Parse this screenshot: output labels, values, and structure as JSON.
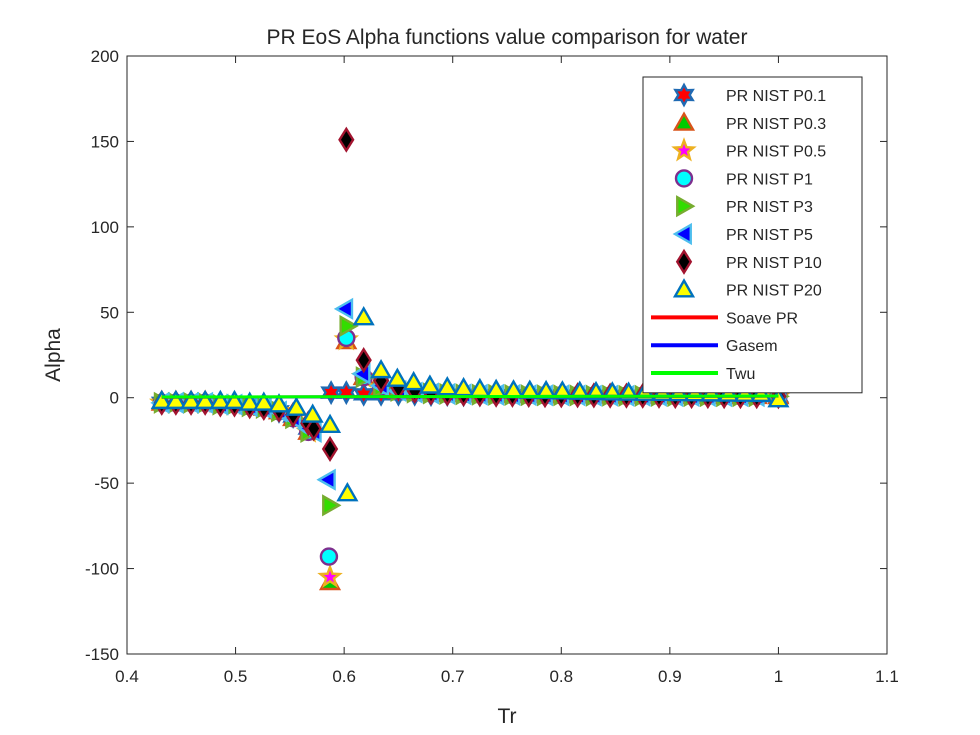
{
  "chart_data": {
    "type": "scatter",
    "title": "PR EoS Alpha functions value comparison for water",
    "xlabel": "Tr",
    "ylabel": "Alpha",
    "xlim": [
      0.4,
      1.1
    ],
    "ylim": [
      -150,
      200
    ],
    "xticks": [
      "0.4",
      "0.5",
      "0.6",
      "0.7",
      "0.8",
      "0.9",
      "1",
      "1.1"
    ],
    "yticks": [
      "-150",
      "-100",
      "-50",
      "0",
      "50",
      "100",
      "150",
      "200"
    ],
    "grid": false,
    "legend_position": "top-right",
    "x": [
      0.432,
      0.445,
      0.459,
      0.472,
      0.486,
      0.499,
      0.513,
      0.526,
      0.54,
      0.553,
      0.567,
      0.58,
      0.594,
      0.607,
      0.621,
      0.634,
      0.648,
      0.661,
      0.675,
      0.688,
      0.702,
      0.715,
      0.729,
      0.742,
      0.756,
      0.769,
      0.783,
      0.796,
      0.81,
      0.823,
      0.837,
      0.85,
      0.864,
      0.877,
      0.891,
      0.904,
      0.918,
      0.931,
      0.945,
      0.958,
      0.972,
      0.985,
      1.0
    ],
    "series": [
      {
        "name": "PR NIST P0.1",
        "marker": "hexagram",
        "fill": "#ff0000",
        "edge": "#1f6ab3",
        "x": [
          0.432,
          0.445,
          0.459,
          0.472,
          0.486,
          0.499,
          0.513,
          0.526,
          0.54,
          0.553,
          0.567,
          0.588,
          0.602,
          0.618,
          0.634,
          0.65,
          0.665,
          0.68,
          0.695,
          0.71,
          0.725,
          0.74,
          0.755,
          0.77,
          0.785,
          0.8,
          0.815,
          0.83,
          0.845,
          0.86,
          0.875,
          0.89,
          0.905,
          0.92,
          0.935,
          0.95,
          0.965,
          0.98,
          1.0
        ],
        "y": [
          -3,
          -3,
          -3,
          -3,
          -4,
          -4,
          -5,
          -6,
          -8,
          -11,
          -18,
          3,
          3,
          2,
          2,
          2,
          2,
          1.8,
          1.8,
          1.7,
          1.6,
          1.5,
          1.5,
          1.4,
          1.3,
          1.3,
          1.2,
          1.2,
          1.1,
          1.1,
          1.1,
          1.0,
          1.0,
          1.0,
          0.9,
          0.9,
          0.9,
          0.9,
          0.8
        ]
      },
      {
        "name": "PR NIST P0.3",
        "marker": "triangle-up",
        "fill": "#00cc00",
        "edge": "#d95319",
        "x": [
          0.432,
          0.445,
          0.459,
          0.472,
          0.486,
          0.499,
          0.513,
          0.526,
          0.54,
          0.553,
          0.567,
          0.587,
          0.602,
          0.618,
          0.634,
          0.65,
          0.665,
          0.68,
          0.695,
          0.71,
          0.725,
          0.74,
          0.755,
          0.77,
          0.785,
          0.8,
          0.815,
          0.83,
          0.845,
          0.86,
          0.875,
          0.89,
          0.905,
          0.92,
          0.935,
          0.95,
          0.965,
          0.98,
          1.0
        ],
        "y": [
          -3,
          -3,
          -3,
          -3,
          -4,
          -4,
          -5,
          -6,
          -8,
          -12,
          -20,
          -108,
          33,
          12,
          6,
          4,
          3,
          2.5,
          2.2,
          2,
          1.8,
          1.7,
          1.6,
          1.5,
          1.4,
          1.4,
          1.3,
          1.2,
          1.2,
          1.1,
          1.1,
          1.1,
          1.0,
          1.0,
          1.0,
          0.9,
          0.9,
          0.9,
          0.8
        ]
      },
      {
        "name": "PR NIST P0.5",
        "marker": "pentagram",
        "fill": "#ff00ff",
        "edge": "#edb120",
        "x": [
          0.432,
          0.445,
          0.459,
          0.472,
          0.486,
          0.499,
          0.513,
          0.526,
          0.54,
          0.553,
          0.567,
          0.587,
          0.602,
          0.618,
          0.634,
          0.65,
          0.665,
          0.68,
          0.695,
          0.71,
          0.725,
          0.74,
          0.755,
          0.77,
          0.785,
          0.8,
          0.815,
          0.83,
          0.845,
          0.86,
          0.875,
          0.89,
          0.905,
          0.92,
          0.935,
          0.95,
          0.965,
          0.98,
          1.0
        ],
        "y": [
          -3,
          -3,
          -3,
          -3,
          -4,
          -4,
          -5,
          -6,
          -8,
          -12,
          -20,
          -105,
          34,
          12,
          6,
          4,
          3,
          2.5,
          2.2,
          2,
          1.8,
          1.7,
          1.6,
          1.5,
          1.4,
          1.4,
          1.3,
          1.2,
          1.2,
          1.1,
          1.1,
          1.1,
          1.0,
          1.0,
          1.0,
          0.9,
          0.9,
          0.9,
          0.8
        ]
      },
      {
        "name": "PR NIST P1",
        "marker": "circle",
        "fill": "#00ffff",
        "edge": "#7e2f8e",
        "x": [
          0.432,
          0.445,
          0.459,
          0.472,
          0.486,
          0.499,
          0.513,
          0.526,
          0.54,
          0.553,
          0.567,
          0.586,
          0.602,
          0.618,
          0.634,
          0.65,
          0.665,
          0.68,
          0.695,
          0.71,
          0.725,
          0.74,
          0.755,
          0.77,
          0.785,
          0.8,
          0.815,
          0.83,
          0.845,
          0.86,
          0.875,
          0.89,
          0.905,
          0.92,
          0.935,
          0.95,
          0.965,
          0.98,
          1.0
        ],
        "y": [
          -3,
          -3,
          -3,
          -3,
          -4,
          -4,
          -5,
          -6,
          -8,
          -12,
          -20,
          -93,
          35,
          12,
          6,
          4,
          3,
          2.5,
          2.2,
          2,
          1.8,
          1.7,
          1.6,
          1.5,
          1.4,
          1.4,
          1.3,
          1.2,
          1.2,
          1.1,
          1.1,
          1.1,
          1.0,
          1.0,
          1.0,
          0.9,
          0.9,
          0.9,
          0.8
        ]
      },
      {
        "name": "PR NIST P3",
        "marker": "triangle-right",
        "fill": "#33dd00",
        "edge": "#77ac30",
        "x": [
          0.432,
          0.445,
          0.459,
          0.472,
          0.486,
          0.499,
          0.513,
          0.526,
          0.54,
          0.553,
          0.567,
          0.587,
          0.603,
          0.618,
          0.634,
          0.65,
          0.665,
          0.68,
          0.695,
          0.71,
          0.725,
          0.74,
          0.755,
          0.77,
          0.785,
          0.8,
          0.815,
          0.83,
          0.845,
          0.86,
          0.875,
          0.89,
          0.905,
          0.92,
          0.935,
          0.95,
          0.965,
          0.98,
          1.0
        ],
        "y": [
          -3,
          -3,
          -3,
          -3,
          -4,
          -4,
          -5,
          -6,
          -8,
          -12,
          -20,
          -63,
          42,
          12,
          6,
          4,
          3,
          2.5,
          2.2,
          2,
          1.8,
          1.7,
          1.6,
          1.5,
          1.4,
          1.4,
          1.3,
          1.2,
          1.2,
          1.1,
          1.1,
          1.1,
          1.0,
          1.0,
          1.0,
          0.9,
          0.9,
          0.9,
          0.8
        ]
      },
      {
        "name": "PR NIST P5",
        "marker": "triangle-left",
        "fill": "#0000ff",
        "edge": "#4dbeee",
        "x": [
          0.432,
          0.445,
          0.459,
          0.472,
          0.486,
          0.499,
          0.513,
          0.526,
          0.54,
          0.553,
          0.567,
          0.572,
          0.585,
          0.601,
          0.617,
          0.634,
          0.65,
          0.665,
          0.68,
          0.695,
          0.71,
          0.725,
          0.74,
          0.755,
          0.77,
          0.785,
          0.8,
          0.815,
          0.83,
          0.845,
          0.86,
          0.875,
          0.89,
          0.905,
          0.92,
          0.935,
          0.95,
          0.965,
          0.98,
          1.0
        ],
        "y": [
          -3,
          -3,
          -3,
          -3,
          -4,
          -4,
          -5,
          -6,
          -8,
          -12,
          -18,
          -20,
          -48,
          52,
          14,
          7,
          4,
          3,
          2.5,
          2.2,
          2,
          1.8,
          1.7,
          1.6,
          1.5,
          1.4,
          1.4,
          1.3,
          1.2,
          1.2,
          1.1,
          1.1,
          1.1,
          1.0,
          1.0,
          1.0,
          0.9,
          0.9,
          0.9,
          0.8
        ]
      },
      {
        "name": "PR NIST P10",
        "marker": "diamond",
        "fill": "#000000",
        "edge": "#a2142f",
        "x": [
          0.432,
          0.445,
          0.459,
          0.472,
          0.486,
          0.499,
          0.513,
          0.526,
          0.54,
          0.553,
          0.567,
          0.572,
          0.587,
          0.602,
          0.618,
          0.634,
          0.65,
          0.665,
          0.68,
          0.695,
          0.71,
          0.725,
          0.74,
          0.755,
          0.77,
          0.785,
          0.8,
          0.815,
          0.83,
          0.845,
          0.86,
          0.875,
          0.89,
          0.905,
          0.92,
          0.935,
          0.95,
          0.965,
          0.98,
          1.0
        ],
        "y": [
          -3,
          -3,
          -3,
          -3,
          -4,
          -4,
          -5,
          -6,
          -7,
          -10,
          -15,
          -18,
          -30,
          151,
          22,
          10,
          6,
          4,
          3,
          2.5,
          2.2,
          2,
          1.8,
          1.7,
          1.6,
          1.5,
          1.4,
          1.4,
          1.3,
          1.2,
          1.2,
          1.1,
          1.1,
          1.0,
          1.0,
          1.0,
          0.9,
          0.9,
          0.9,
          0.8
        ]
      },
      {
        "name": "PR NIST P20",
        "marker": "triangle-up",
        "fill": "#ffff00",
        "edge": "#0072bd",
        "x": [
          0.432,
          0.445,
          0.459,
          0.472,
          0.486,
          0.499,
          0.513,
          0.526,
          0.54,
          0.556,
          0.571,
          0.587,
          0.603,
          0.618,
          0.634,
          0.649,
          0.664,
          0.679,
          0.695,
          0.71,
          0.725,
          0.74,
          0.756,
          0.771,
          0.786,
          0.801,
          0.817,
          0.832,
          0.847,
          0.862,
          0.877,
          0.893,
          0.908,
          0.923,
          0.938,
          0.954,
          0.969,
          0.984,
          1.0
        ],
        "y": [
          -2,
          -2,
          -2,
          -2,
          -2,
          -2,
          -3,
          -3,
          -4,
          -6,
          -10,
          -16,
          -56,
          47,
          16,
          11,
          9,
          7,
          6,
          5.5,
          5,
          4.5,
          4.2,
          4,
          3.8,
          3.6,
          3.4,
          3.2,
          3,
          2.9,
          2.8,
          2.7,
          2.6,
          2.5,
          2.4,
          2.3,
          2.2,
          2.1,
          -1
        ]
      },
      {
        "name": "Soave PR",
        "marker": "line",
        "color": "#ff0000",
        "x": [
          0.432,
          1.0
        ],
        "y": [
          0.3,
          0.95
        ]
      },
      {
        "name": "Gasem",
        "marker": "line",
        "color": "#0000ff",
        "x": [
          0.432,
          1.0
        ],
        "y": [
          0.35,
          0.97
        ]
      },
      {
        "name": "Twu",
        "marker": "line",
        "color": "#00ff00",
        "x": [
          0.432,
          1.0
        ],
        "y": [
          0.4,
          1.0
        ]
      }
    ]
  }
}
